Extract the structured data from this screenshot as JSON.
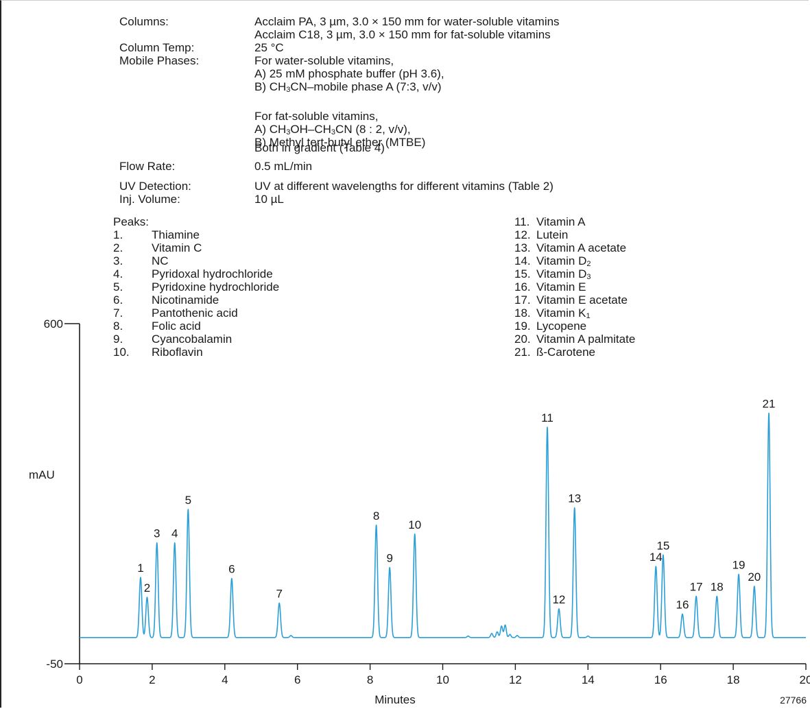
{
  "conditions": [
    {
      "label": "Columns:",
      "lines": [
        "Acclaim PA, 3 µm, 3.0 × 150 mm for water-soluble vitamins",
        "Acclaim C18, 3 µm, 3.0 × 150 mm for fat-soluble vitamins"
      ]
    },
    {
      "label": "Column Temp:",
      "lines": [
        "25 °C"
      ]
    },
    {
      "label": "Mobile Phases:",
      "lines": [
        "For water-soluble vitamins,",
        "A) 25 mM phosphate buffer (pH 3.6),",
        "B) CH3CN–mobile phase A (7:3, v/v)"
      ]
    },
    {
      "label": "",
      "lines": [
        "For fat-soluble vitamins,",
        "A) CH3OH–CH3CN (8 : 2, v/v),",
        "B) Methyl tert-butyl ether (MTBE)"
      ]
    },
    {
      "label": "",
      "lines": [
        "Both in gradient (Table 4)"
      ]
    },
    {
      "label": "Flow Rate:",
      "lines": [
        "0.5 mL/min"
      ]
    },
    {
      "label": "UV Detection:",
      "lines": [
        "UV at different wavelengths for different vitamins (Table 2)"
      ]
    },
    {
      "label": "Inj. Volume:",
      "lines": [
        "10 µL"
      ]
    }
  ],
  "peaks_heading": "Peaks:",
  "peaks": [
    {
      "num": "1.",
      "name": "Thiamine"
    },
    {
      "num": "2.",
      "name": "Vitamin C"
    },
    {
      "num": "3.",
      "name": "NC"
    },
    {
      "num": "4.",
      "name": "Pyridoxal hydrochloride"
    },
    {
      "num": "5.",
      "name": "Pyridoxine hydrochloride"
    },
    {
      "num": "6.",
      "name": "Nicotinamide"
    },
    {
      "num": "7.",
      "name": "Pantothenic acid"
    },
    {
      "num": "8.",
      "name": "Folic acid"
    },
    {
      "num": "9.",
      "name": "Cyancobalamin"
    },
    {
      "num": "10.",
      "name": "Riboflavin"
    },
    {
      "num": "11.",
      "name": "Vitamin A"
    },
    {
      "num": "12.",
      "name": "Lutein"
    },
    {
      "num": "13.",
      "name": "Vitamin A acetate"
    },
    {
      "num": "14.",
      "name": "Vitamin D2"
    },
    {
      "num": "15.",
      "name": "Vitamin D3"
    },
    {
      "num": "16.",
      "name": "Vitamin E"
    },
    {
      "num": "17.",
      "name": "Vitamin E acetate"
    },
    {
      "num": "18.",
      "name": "Vitamin K1"
    },
    {
      "num": "19.",
      "name": "Lycopene"
    },
    {
      "num": "20.",
      "name": "Vitamin A palmitate"
    },
    {
      "num": "21.",
      "name": "ß-Carotene"
    }
  ],
  "figure_code": "27766",
  "chart_data": {
    "type": "line",
    "xlabel": "Minutes",
    "ylabel": "mAU",
    "xlim": [
      0,
      20
    ],
    "ylim": [
      -50,
      600
    ],
    "x_ticks": [
      0,
      2,
      4,
      6,
      8,
      10,
      12,
      14,
      16,
      18,
      20
    ],
    "y_ticks": [
      -50,
      600
    ],
    "line_color": "#2a9fd6",
    "baseline": 0,
    "peaks": [
      {
        "label": "1",
        "x": 1.68,
        "y": 115
      },
      {
        "label": "2",
        "x": 1.86,
        "y": 77
      },
      {
        "label": "3",
        "x": 2.13,
        "y": 181
      },
      {
        "label": "4",
        "x": 2.62,
        "y": 181
      },
      {
        "label": "5",
        "x": 2.99,
        "y": 245
      },
      {
        "label": "6",
        "x": 4.19,
        "y": 113
      },
      {
        "label": "7",
        "x": 5.5,
        "y": 66
      },
      {
        "label": "8",
        "x": 8.17,
        "y": 215
      },
      {
        "label": "9",
        "x": 8.54,
        "y": 134
      },
      {
        "label": "10",
        "x": 9.23,
        "y": 198
      },
      {
        "label": "11",
        "x": 12.88,
        "y": 402
      },
      {
        "label": "12",
        "x": 13.2,
        "y": 55
      },
      {
        "label": "13",
        "x": 13.63,
        "y": 248
      },
      {
        "label": "14",
        "x": 15.87,
        "y": 136
      },
      {
        "label": "15",
        "x": 16.07,
        "y": 158
      },
      {
        "label": "16",
        "x": 16.6,
        "y": 45
      },
      {
        "label": "17",
        "x": 16.98,
        "y": 79
      },
      {
        "label": "18",
        "x": 17.55,
        "y": 79
      },
      {
        "label": "19",
        "x": 18.15,
        "y": 121
      },
      {
        "label": "20",
        "x": 18.58,
        "y": 98
      },
      {
        "label": "21",
        "x": 18.98,
        "y": 429
      }
    ],
    "minor_features": [
      {
        "x": 5.82,
        "y": 4
      },
      {
        "x": 10.7,
        "y": 3
      },
      {
        "x": 11.35,
        "y": 8
      },
      {
        "x": 11.5,
        "y": 11
      },
      {
        "x": 11.62,
        "y": 22
      },
      {
        "x": 11.72,
        "y": 24
      },
      {
        "x": 11.85,
        "y": 6
      },
      {
        "x": 12.05,
        "y": 4
      },
      {
        "x": 14.0,
        "y": 3
      }
    ]
  }
}
